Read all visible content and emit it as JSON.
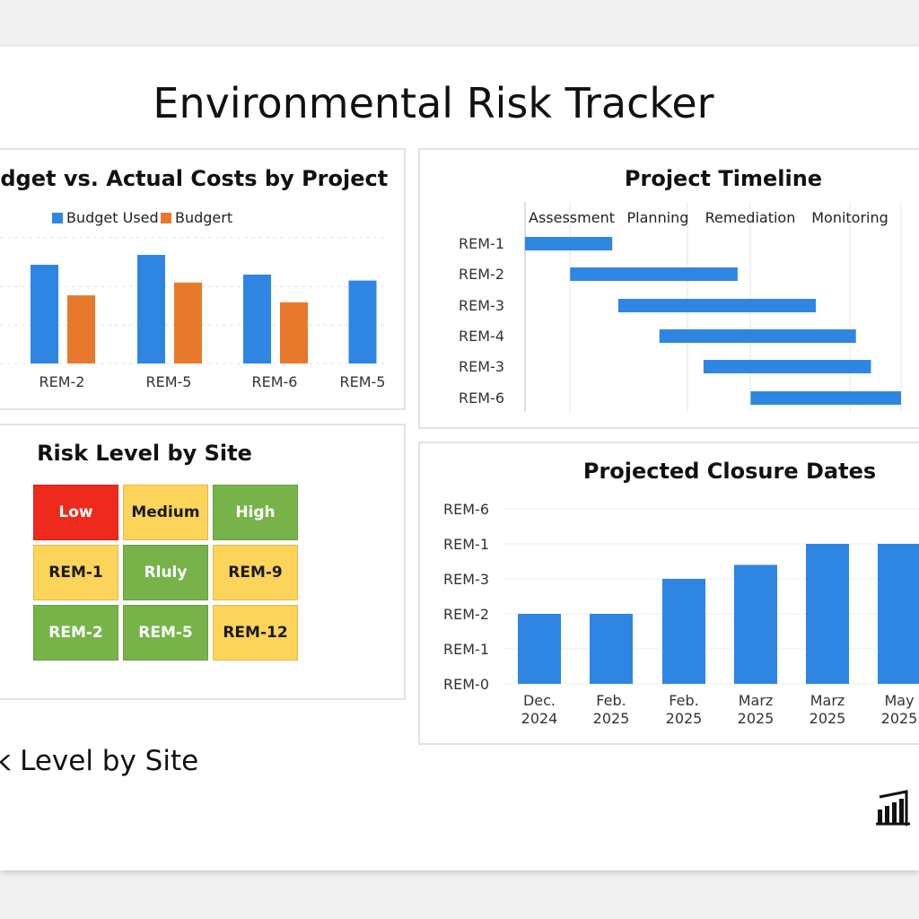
{
  "page": {
    "title": "Environmental Risk Tracker",
    "bottom_heading": "Risk Level by Site"
  },
  "budget_chart": {
    "title": "Budget vs. Actual Costs by Project",
    "legend": [
      "Budget Used",
      "Budgert"
    ],
    "colors": {
      "budget_used": "#2f86e2",
      "budgert": "#e8792c"
    }
  },
  "timeline": {
    "title": "Project Timeline",
    "phases": [
      "Assessment",
      "Planning",
      "Remediation",
      "Monitoring"
    ]
  },
  "heatmap": {
    "title": "Risk Level by Site",
    "rows": [
      [
        {
          "label": "Low",
          "color": "#ee2a1c",
          "text": "#ffffff"
        },
        {
          "label": "Medium",
          "color": "#fdd45a",
          "text": "#1a1a1a"
        },
        {
          "label": "High",
          "color": "#78b34a",
          "text": "#ffffff"
        }
      ],
      [
        {
          "label": "REM-1",
          "color": "#fdd45a",
          "text": "#1a1a1a"
        },
        {
          "label": "Rluly",
          "color": "#78b34a",
          "text": "#ffffff"
        },
        {
          "label": "REM-9",
          "color": "#fdd45a",
          "text": "#1a1a1a"
        }
      ],
      [
        {
          "label": "REM-2",
          "color": "#78b34a",
          "text": "#ffffff"
        },
        {
          "label": "REM-5",
          "color": "#78b34a",
          "text": "#ffffff"
        },
        {
          "label": "REM-12",
          "color": "#fdd45a",
          "text": "#1a1a1a"
        }
      ]
    ]
  },
  "closure_chart": {
    "title": "Projected Closure Dates",
    "color": "#2f86e2"
  },
  "chart_data": [
    {
      "type": "bar",
      "title": "Budget vs. Actual Costs by Project",
      "categories": [
        "REM-2",
        "REM-5",
        "REM-6",
        "REM-5"
      ],
      "series": [
        {
          "name": "Budget Used",
          "values": [
            100,
            110,
            90,
            84
          ]
        },
        {
          "name": "Budgert",
          "values": [
            69,
            82,
            62,
            null
          ]
        }
      ],
      "ylim": [
        0,
        130
      ],
      "grid": true,
      "legend": "top"
    },
    {
      "type": "bar",
      "title": "Project Timeline",
      "orientation": "horizontal",
      "categories": [
        "REM-1",
        "REM-2",
        "REM-3",
        "REM-4",
        "REM-3",
        "REM-6"
      ],
      "columns": [
        "Assessment",
        "Planning",
        "Remediation",
        "Monitoring"
      ],
      "start": [
        0.0,
        0.45,
        0.93,
        1.34,
        1.78,
        2.25
      ],
      "end": [
        0.87,
        2.12,
        2.9,
        3.3,
        3.45,
        3.75
      ],
      "xlim": [
        0,
        3.75
      ],
      "grid": true
    },
    {
      "type": "bar",
      "title": "Projected Closure Dates",
      "categories": [
        "Dec.\n2024",
        "Feb.\n2025",
        "Feb.\n2025",
        "Marz\n2025",
        "Marz\n2025",
        "May\n2025"
      ],
      "yticks": [
        "REM-0",
        "REM-1",
        "REM-2",
        "REM-3",
        "REM-1",
        "REM-6"
      ],
      "values": [
        2,
        2,
        3,
        3.4,
        4,
        4
      ],
      "ylim": [
        0,
        5
      ],
      "grid": true
    }
  ]
}
